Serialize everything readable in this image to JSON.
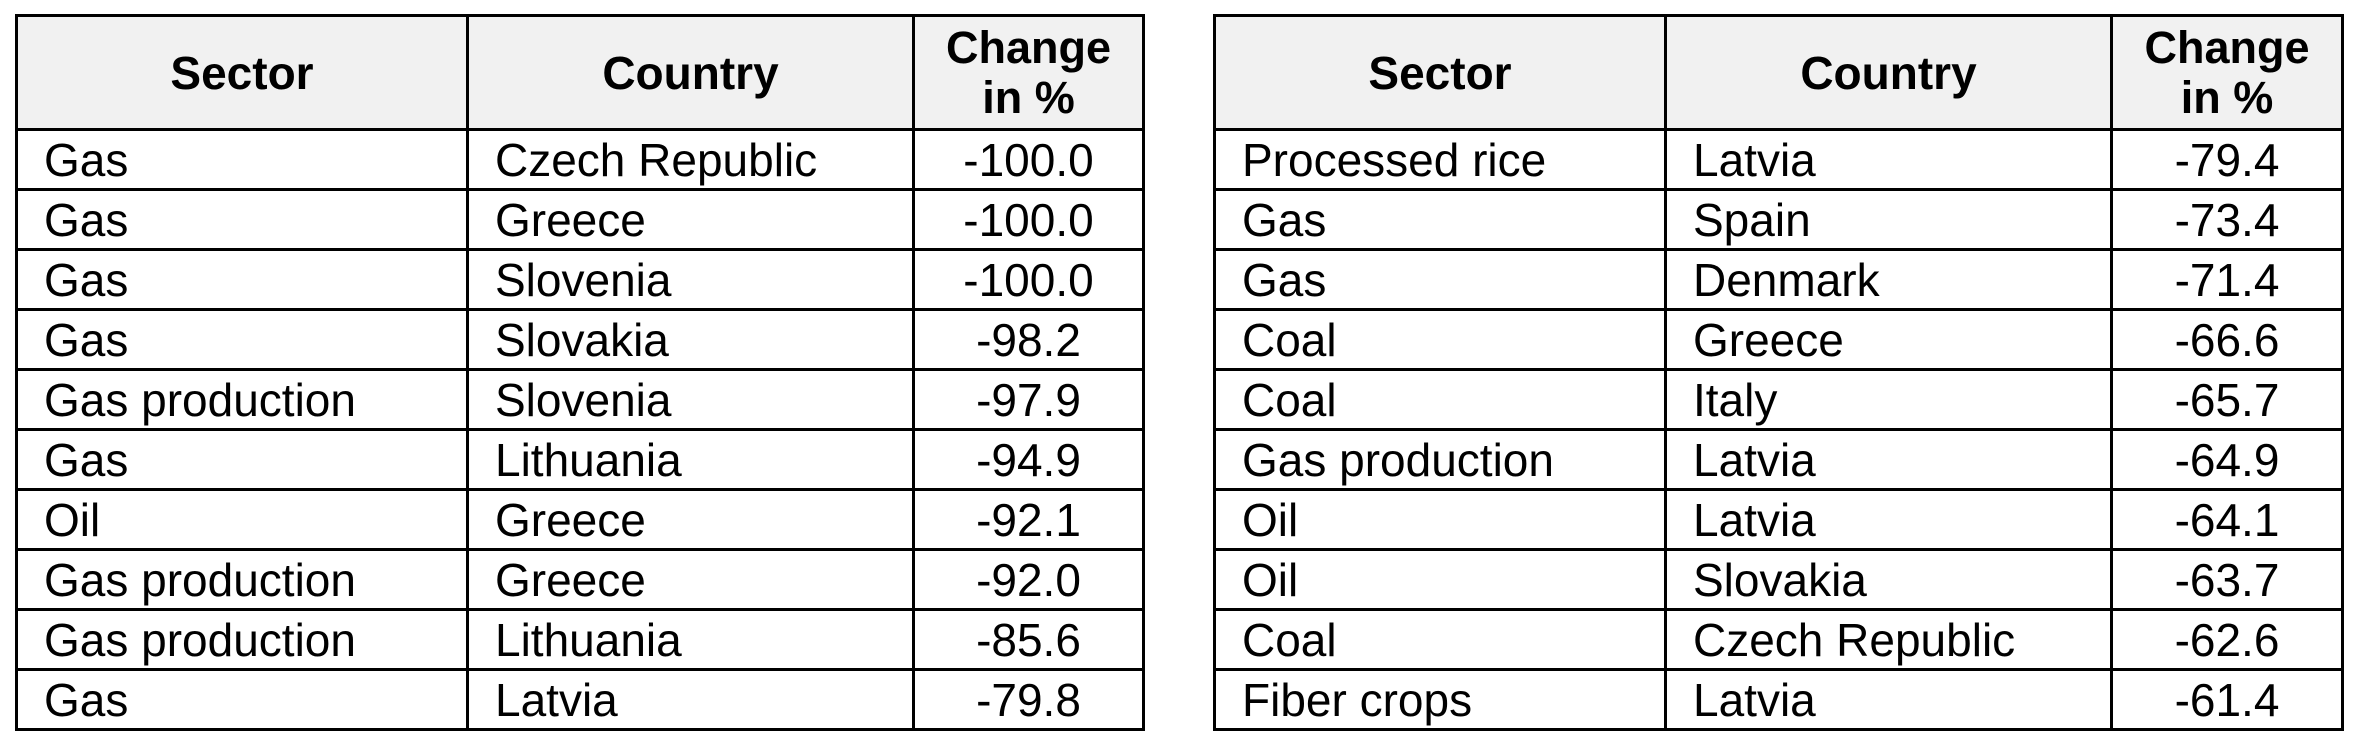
{
  "headers": {
    "sector": "Sector",
    "country": "Country",
    "change_line1": "Change",
    "change_line2": "in %"
  },
  "left_table": {
    "rows": [
      {
        "sector": "Gas",
        "country": "Czech Republic",
        "change": "-100.0"
      },
      {
        "sector": "Gas",
        "country": "Greece",
        "change": "-100.0"
      },
      {
        "sector": "Gas",
        "country": "Slovenia",
        "change": "-100.0"
      },
      {
        "sector": "Gas",
        "country": "Slovakia",
        "change": "-98.2"
      },
      {
        "sector": "Gas production",
        "country": "Slovenia",
        "change": "-97.9"
      },
      {
        "sector": "Gas",
        "country": "Lithuania",
        "change": "-94.9"
      },
      {
        "sector": "Oil",
        "country": "Greece",
        "change": "-92.1"
      },
      {
        "sector": "Gas production",
        "country": "Greece",
        "change": "-92.0"
      },
      {
        "sector": "Gas production",
        "country": "Lithuania",
        "change": "-85.6"
      },
      {
        "sector": "Gas",
        "country": "Latvia",
        "change": "-79.8"
      }
    ]
  },
  "right_table": {
    "rows": [
      {
        "sector": "Processed rice",
        "country": "Latvia",
        "change": "-79.4"
      },
      {
        "sector": "Gas",
        "country": "Spain",
        "change": "-73.4"
      },
      {
        "sector": "Gas",
        "country": "Denmark",
        "change": "-71.4"
      },
      {
        "sector": "Coal",
        "country": "Greece",
        "change": "-66.6"
      },
      {
        "sector": "Coal",
        "country": "Italy",
        "change": "-65.7"
      },
      {
        "sector": "Gas production",
        "country": "Latvia",
        "change": "-64.9"
      },
      {
        "sector": "Oil",
        "country": "Latvia",
        "change": "-64.1"
      },
      {
        "sector": "Oil",
        "country": "Slovakia",
        "change": "-63.7"
      },
      {
        "sector": "Coal",
        "country": "Czech Republic",
        "change": "-62.6"
      },
      {
        "sector": "Fiber crops",
        "country": "Latvia",
        "change": "-61.4"
      }
    ]
  },
  "colors": {
    "header_background": "#f1f1f1",
    "border": "#000000",
    "text": "#000000"
  }
}
